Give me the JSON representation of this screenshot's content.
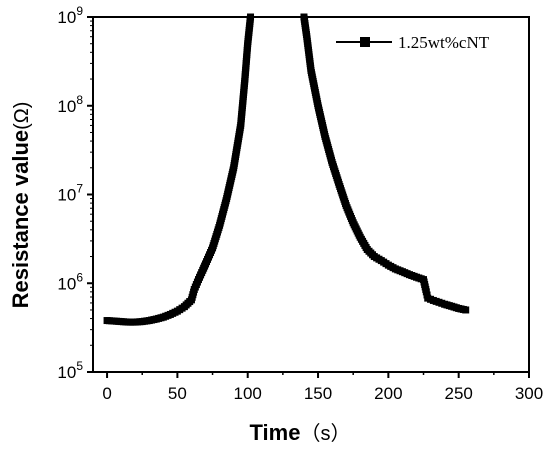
{
  "chart_data": {
    "type": "scatter",
    "xlabel": "Time",
    "xlabel_unit": "（s）",
    "ylabel": "Resistance value",
    "ylabel_unit": "(Ω)",
    "x_ticks": [
      "0",
      "50",
      "100",
      "150",
      "200",
      "250",
      "300"
    ],
    "y_tick_exponents": [
      "5",
      "6",
      "7",
      "8",
      "9"
    ],
    "y_tick_base": "10",
    "xlim": [
      -10,
      300
    ],
    "ylim": [
      100000,
      1000000000
    ],
    "y_scale": "log",
    "grid": false,
    "legend_position": "top-right",
    "series": [
      {
        "name": "1.25wt%cNT",
        "color": "#000000",
        "marker": "square",
        "points": [
          [
            0,
            380000
          ],
          [
            5,
            375000
          ],
          [
            10,
            370000
          ],
          [
            15,
            365000
          ],
          [
            20,
            365000
          ],
          [
            25,
            370000
          ],
          [
            30,
            380000
          ],
          [
            35,
            395000
          ],
          [
            40,
            415000
          ],
          [
            45,
            445000
          ],
          [
            50,
            485000
          ],
          [
            55,
            545000
          ],
          [
            60,
            650000
          ],
          [
            62,
            850000
          ],
          [
            65,
            1100000
          ],
          [
            68,
            1400000
          ],
          [
            70,
            1650000
          ],
          [
            75,
            2500000
          ],
          [
            80,
            4500000
          ],
          [
            85,
            9000000
          ],
          [
            90,
            20000000
          ],
          [
            95,
            60000000
          ],
          [
            98,
            200000000
          ],
          [
            100,
            500000000
          ],
          [
            102,
            1000000000
          ],
          [
            140,
            1000000000
          ],
          [
            142,
            600000000
          ],
          [
            145,
            250000000
          ],
          [
            150,
            100000000
          ],
          [
            155,
            45000000
          ],
          [
            160,
            23000000
          ],
          [
            165,
            13000000
          ],
          [
            170,
            7500000
          ],
          [
            175,
            4800000
          ],
          [
            180,
            3300000
          ],
          [
            185,
            2400000
          ],
          [
            190,
            2000000
          ],
          [
            195,
            1800000
          ],
          [
            200,
            1600000
          ],
          [
            205,
            1450000
          ],
          [
            210,
            1350000
          ],
          [
            215,
            1250000
          ],
          [
            220,
            1170000
          ],
          [
            225,
            1100000
          ],
          [
            227,
            800000
          ],
          [
            228,
            680000
          ],
          [
            232,
            640000
          ],
          [
            236,
            610000
          ],
          [
            240,
            580000
          ],
          [
            245,
            550000
          ],
          [
            250,
            520000
          ],
          [
            255,
            500000
          ]
        ]
      }
    ]
  }
}
